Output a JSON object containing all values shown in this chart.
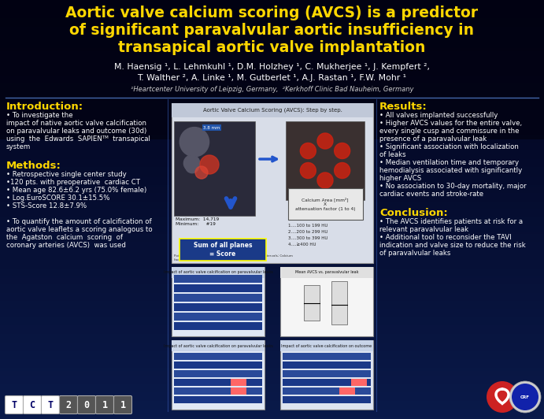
{
  "bg_color": "#030318",
  "title_line1": "Aortic valve calcium scoring (AVCS) is a predictor",
  "title_line2": "of significant paravalvular aortic insufficiency in",
  "title_line3": "transapical aortic valve implantation",
  "title_color": "#FFD700",
  "authors_line1": "M. Haensig ¹, L. Lehmkuhl ¹, D.M. Holzhey ¹, C. Mukherjee ¹, J. Kempfert ²,",
  "authors_line2": "T. Walther ², A. Linke ¹, M. Gutberlet ¹, A.J. Rastan ¹, F.W. Mohr ¹",
  "affiliations": "¹Heartcenter University of Leipzig, Germany,  ²Kerkhoff Clinic Bad Nauheim, Germany",
  "authors_color": "#FFFFFF",
  "affiliations_color": "#CCCCCC",
  "section_title_color": "#FFD700",
  "body_text_color": "#FFFFFF",
  "intro_title": "Introduction:",
  "intro_body": [
    "• To investigate the",
    "impact of native aortic valve calcification",
    "on paravalvular leaks and outcome (30d)",
    "using  the  Edwards  SAPIENᵀᴹ  transapical",
    "system"
  ],
  "methods_title": "Methods:",
  "methods_body": [
    "• Retrospective single center study",
    "•120 pts. with preoperative  cardiac CT",
    "• Mean age 82.6±6.2 yrs (75.0% female)",
    "• Log.EuroSCORE 30.1±15.5%",
    "• STS-Score 12.8±7.9%",
    "",
    "• To quantify the amount of calcification of",
    "aortic valve leaflets a scoring analogous to",
    "the  Agatston  calcium  scoring  of",
    "coronary arteries (AVCS)  was used"
  ],
  "results_title": "Results:",
  "results_body": [
    "• All valves implanted successfully",
    "• Higher AVCS values for the entire valve,",
    "every single cusp and commissure in the",
    "presence of a paravalvular leak",
    "• Significant association with localization",
    "of leaks",
    "• Median ventilation time and temporary",
    "hemodialysis associated with significantly",
    "higher AVCS",
    "• No association to 30-day mortality, major",
    "cardiac events and stroke-rate"
  ],
  "conclusion_title": "Conclusion:",
  "conclusion_body": [
    "• The AVCS identifies patients at risk for a",
    "relevant paravalvular leak",
    "• Additional tool to reconsider the TAVI",
    "indication and valve size to reduce the risk",
    "of paravalvular leaks"
  ],
  "center_panel_title": "Aortic Valve Calcium Scoring (AVCS): Step by step."
}
